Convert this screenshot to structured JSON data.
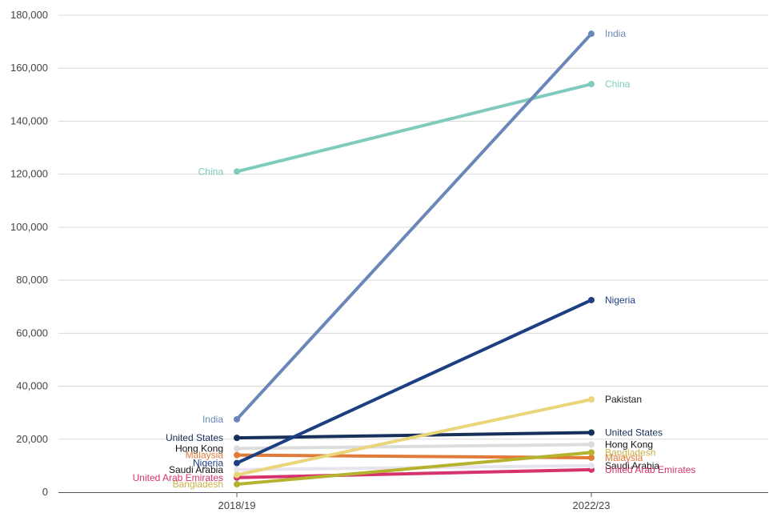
{
  "chart_data": {
    "type": "line",
    "x": [
      "2018/19",
      "2022/23"
    ],
    "ylim": [
      0,
      180000
    ],
    "yticks": [
      0,
      20000,
      40000,
      60000,
      80000,
      100000,
      120000,
      140000,
      160000,
      180000
    ],
    "ytick_labels": [
      "0",
      "20,000",
      "40,000",
      "60,000",
      "80,000",
      "100,000",
      "120,000",
      "140,000",
      "160,000",
      "180,000"
    ],
    "grid": true,
    "series": [
      {
        "name": "India",
        "values": [
          27500,
          173000
        ],
        "color": "#6b86b8",
        "label_color": "#6b86b8",
        "start_label": "India",
        "end_label": "India"
      },
      {
        "name": "China",
        "values": [
          121000,
          154000
        ],
        "color": "#7fcbbd",
        "label_color": "#7fcbbd",
        "start_label": "China",
        "end_label": "China"
      },
      {
        "name": "Nigeria",
        "values": [
          11000,
          72500
        ],
        "color": "#1c3f82",
        "label_color": "#1c3f82",
        "start_label": "Nigeria",
        "end_label": "Nigeria"
      },
      {
        "name": "Pakistan",
        "values": [
          6500,
          35000
        ],
        "color": "#e9d57a",
        "label_color": "#222222",
        "start_label": "",
        "end_label": "Pakistan"
      },
      {
        "name": "United States",
        "values": [
          20500,
          22500
        ],
        "color": "#17305a",
        "label_color": "#17305a",
        "start_label": "United States",
        "end_label": "United States"
      },
      {
        "name": "Hong Kong",
        "values": [
          16500,
          18000
        ],
        "color": "#dcdcdc",
        "label_color": "#111111",
        "start_label": "Hong Kong",
        "end_label": "Hong Kong"
      },
      {
        "name": "Bangladesh",
        "values": [
          3000,
          15000
        ],
        "color": "#b5b32e",
        "label_color": "#c9b247",
        "start_label": "Bangladesh",
        "end_label": "Bangladesh"
      },
      {
        "name": "Malaysia",
        "values": [
          14000,
          13000
        ],
        "color": "#e07b39",
        "label_color": "#e07b39",
        "start_label": "Malaysia",
        "end_label": "Malaysia"
      },
      {
        "name": "Saudi Arabia",
        "values": [
          8500,
          10000
        ],
        "color": "#e8e4ee",
        "label_color": "#111111",
        "start_label": "Saudi Arabia",
        "end_label": "Saudi Arabia"
      },
      {
        "name": "United Arab Emirates",
        "values": [
          5500,
          8500
        ],
        "color": "#d6336c",
        "label_color": "#d6336c",
        "start_label": "United Arab Emirates",
        "end_label": "United Arab Emirates"
      }
    ]
  }
}
